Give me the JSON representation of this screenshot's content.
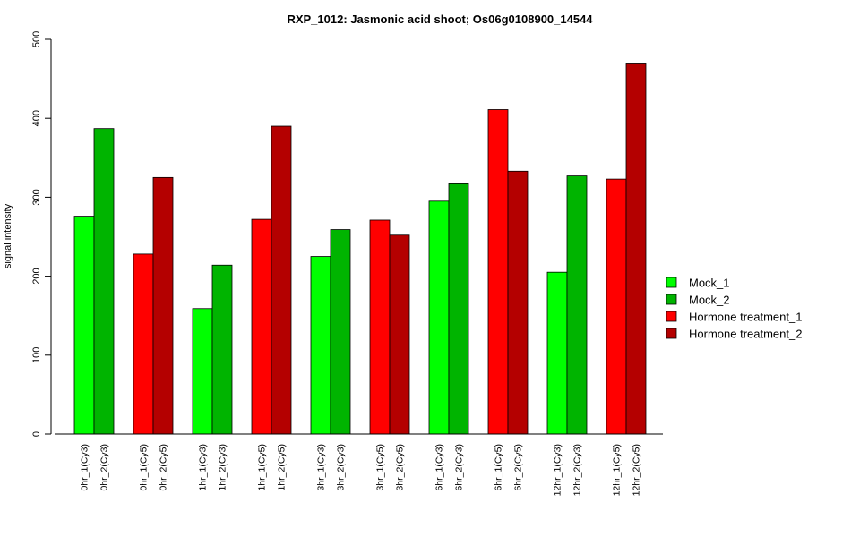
{
  "chart_data": {
    "type": "bar",
    "title": "RXP_1012: Jasmonic acid shoot; Os06g0108900_14544",
    "xlabel": "",
    "ylabel": "signal intensity",
    "ylim": [
      0,
      500
    ],
    "yticks": [
      0,
      100,
      200,
      300,
      400,
      500
    ],
    "grid": false,
    "legend_position": "right",
    "series": [
      {
        "name": "Mock_1",
        "color": "#00FF00"
      },
      {
        "name": "Mock_2",
        "color": "#00B400"
      },
      {
        "name": "Hormone treatment_1",
        "color": "#FF0000"
      },
      {
        "name": "Hormone treatment_2",
        "color": "#B40000"
      }
    ],
    "groups": [
      {
        "bars": [
          {
            "label": "0hr_1(Cy3)",
            "value": 276,
            "series": 0
          },
          {
            "label": "0hr_2(Cy3)",
            "value": 387,
            "series": 1
          }
        ]
      },
      {
        "bars": [
          {
            "label": "0hr_1(Cy5)",
            "value": 228,
            "series": 2
          },
          {
            "label": "0hr_2(Cy5)",
            "value": 325,
            "series": 3
          }
        ]
      },
      {
        "bars": [
          {
            "label": "1hr_1(Cy3)",
            "value": 159,
            "series": 0
          },
          {
            "label": "1hr_2(Cy3)",
            "value": 214,
            "series": 1
          }
        ]
      },
      {
        "bars": [
          {
            "label": "1hr_1(Cy5)",
            "value": 272,
            "series": 2
          },
          {
            "label": "1hr_2(Cy5)",
            "value": 390,
            "series": 3
          }
        ]
      },
      {
        "bars": [
          {
            "label": "3hr_1(Cy3)",
            "value": 225,
            "series": 0
          },
          {
            "label": "3hr_2(Cy3)",
            "value": 259,
            "series": 1
          }
        ]
      },
      {
        "bars": [
          {
            "label": "3hr_1(Cy5)",
            "value": 271,
            "series": 2
          },
          {
            "label": "3hr_2(Cy5)",
            "value": 252,
            "series": 3
          }
        ]
      },
      {
        "bars": [
          {
            "label": "6hr_1(Cy3)",
            "value": 295,
            "series": 0
          },
          {
            "label": "6hr_2(Cy3)",
            "value": 317,
            "series": 1
          }
        ]
      },
      {
        "bars": [
          {
            "label": "6hr_1(Cy5)",
            "value": 411,
            "series": 2
          },
          {
            "label": "6hr_2(Cy5)",
            "value": 333,
            "series": 3
          }
        ]
      },
      {
        "bars": [
          {
            "label": "12hr_1(Cy3)",
            "value": 205,
            "series": 0
          },
          {
            "label": "12hr_2(Cy3)",
            "value": 327,
            "series": 1
          }
        ]
      },
      {
        "bars": [
          {
            "label": "12hr_1(Cy5)",
            "value": 323,
            "series": 2
          },
          {
            "label": "12hr_2(Cy5)",
            "value": 470,
            "series": 3
          }
        ]
      }
    ]
  }
}
